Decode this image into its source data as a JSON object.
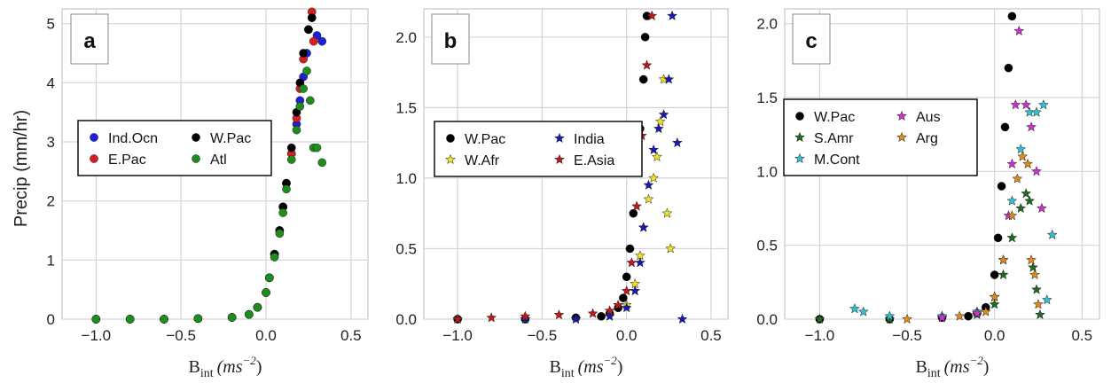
{
  "figure": {
    "ylabel": "Precip (mm/hr)",
    "xlabel_main": "B",
    "xlabel_sub": "int",
    "xlabel_units": "(ms",
    "xlabel_exp": "−2",
    "xlabel_close": ")"
  },
  "chart_data": [
    {
      "type": "scatter",
      "panel": "a",
      "xlim": [
        -1.2,
        0.6
      ],
      "ylim": [
        0,
        5.25
      ],
      "xticks": [
        -1.0,
        -0.5,
        0.0,
        0.5
      ],
      "yticks": [
        0,
        1,
        2,
        3,
        4,
        5
      ],
      "xtick_labels": [
        "−1.0",
        "−0.5",
        "0.0",
        "0.5"
      ],
      "ytick_labels": [
        "0",
        "1",
        "2",
        "3",
        "4",
        "5"
      ],
      "grid": true,
      "legend": {
        "placement": "center-left",
        "columns": 2
      },
      "series": [
        {
          "name": "Ind.Ocn",
          "marker": "circle",
          "color": "#1f1fd6",
          "x": [
            -1.0,
            -0.8,
            -0.6,
            -0.4,
            -0.2,
            -0.1,
            -0.05,
            0.0,
            0.02,
            0.05,
            0.08,
            0.1,
            0.12,
            0.15,
            0.18,
            0.2,
            0.22,
            0.24,
            0.25,
            0.27,
            0.3,
            0.33
          ],
          "y": [
            0.0,
            0.0,
            0.0,
            0.01,
            0.03,
            0.08,
            0.2,
            0.45,
            0.7,
            1.1,
            1.5,
            1.9,
            2.3,
            2.8,
            3.3,
            3.7,
            4.1,
            4.5,
            4.9,
            5.1,
            4.8,
            4.7
          ]
        },
        {
          "name": "E.Pac",
          "marker": "circle",
          "color": "#d42020",
          "x": [
            -1.0,
            -0.8,
            -0.6,
            -0.4,
            -0.2,
            -0.1,
            -0.05,
            0.0,
            0.02,
            0.05,
            0.08,
            0.1,
            0.12,
            0.15,
            0.18,
            0.2,
            0.22,
            0.25,
            0.27,
            0.28
          ],
          "y": [
            0.0,
            0.0,
            0.0,
            0.01,
            0.03,
            0.08,
            0.2,
            0.45,
            0.7,
            1.1,
            1.5,
            1.9,
            2.3,
            2.8,
            3.4,
            3.9,
            4.4,
            4.9,
            5.2,
            4.7
          ]
        },
        {
          "name": "W.Pac",
          "marker": "circle",
          "color": "#000000",
          "x": [
            -1.0,
            -0.8,
            -0.6,
            -0.4,
            -0.2,
            -0.1,
            -0.05,
            0.0,
            0.02,
            0.05,
            0.08,
            0.1,
            0.12,
            0.15,
            0.18,
            0.2,
            0.22,
            0.25,
            0.27
          ],
          "y": [
            0.0,
            0.0,
            0.0,
            0.01,
            0.03,
            0.08,
            0.2,
            0.45,
            0.7,
            1.1,
            1.5,
            1.9,
            2.3,
            2.9,
            3.5,
            4.0,
            4.5,
            4.9,
            5.1
          ]
        },
        {
          "name": "Atl",
          "marker": "circle",
          "color": "#1e8c1e",
          "x": [
            -1.0,
            -0.8,
            -0.6,
            -0.4,
            -0.2,
            -0.1,
            -0.05,
            0.0,
            0.02,
            0.05,
            0.08,
            0.1,
            0.12,
            0.15,
            0.18,
            0.2,
            0.22,
            0.24,
            0.26,
            0.28,
            0.3,
            0.33
          ],
          "y": [
            0.0,
            0.0,
            0.0,
            0.01,
            0.03,
            0.08,
            0.2,
            0.45,
            0.7,
            1.05,
            1.45,
            1.8,
            2.2,
            2.7,
            3.2,
            3.6,
            3.9,
            4.2,
            3.7,
            2.9,
            2.9,
            2.65
          ]
        }
      ]
    },
    {
      "type": "scatter",
      "panel": "b",
      "xlim": [
        -1.2,
        0.6
      ],
      "ylim": [
        0,
        2.2
      ],
      "xticks": [
        -1.0,
        -0.5,
        0.0,
        0.5
      ],
      "yticks": [
        0.0,
        0.5,
        1.0,
        1.5,
        2.0
      ],
      "xtick_labels": [
        "−1.0",
        "−0.5",
        "0.0",
        "0.5"
      ],
      "ytick_labels": [
        "0.0",
        "0.5",
        "1.0",
        "1.5",
        "2.0"
      ],
      "grid": true,
      "legend": {
        "placement": "center-left",
        "columns": 2
      },
      "series": [
        {
          "name": "W.Pac",
          "marker": "circle",
          "color": "#000000",
          "x": [
            -1.0,
            -0.6,
            -0.3,
            -0.15,
            -0.1,
            -0.05,
            -0.02,
            0.0,
            0.02,
            0.04,
            0.06,
            0.08,
            0.1,
            0.11,
            0.12
          ],
          "y": [
            0.0,
            0.0,
            0.01,
            0.02,
            0.04,
            0.08,
            0.15,
            0.3,
            0.5,
            0.75,
            1.05,
            1.35,
            1.7,
            2.0,
            2.15
          ]
        },
        {
          "name": "W.Afr",
          "marker": "star",
          "color": "#f0e020",
          "x": [
            -1.0,
            -0.6,
            -0.3,
            -0.1,
            0.0,
            0.05,
            0.08,
            0.1,
            0.13,
            0.16,
            0.18,
            0.2,
            0.22,
            0.24,
            0.26
          ],
          "y": [
            0.0,
            0.0,
            0.0,
            0.02,
            0.1,
            0.25,
            0.45,
            0.65,
            0.85,
            1.0,
            1.15,
            1.4,
            1.7,
            0.75,
            0.5
          ]
        },
        {
          "name": "India",
          "marker": "star",
          "color": "#1a1ab0",
          "x": [
            -1.0,
            -0.6,
            -0.3,
            -0.1,
            0.0,
            0.05,
            0.08,
            0.1,
            0.13,
            0.16,
            0.19,
            0.22,
            0.25,
            0.27,
            0.3,
            0.33
          ],
          "y": [
            0.0,
            0.0,
            0.0,
            0.02,
            0.08,
            0.2,
            0.4,
            0.65,
            0.95,
            1.2,
            1.35,
            1.45,
            1.7,
            2.15,
            1.25,
            0.0
          ]
        },
        {
          "name": "E.Asia",
          "marker": "star",
          "color": "#c01818",
          "x": [
            -1.0,
            -0.8,
            -0.6,
            -0.4,
            -0.2,
            -0.1,
            -0.05,
            0.0,
            0.03,
            0.06,
            0.09,
            0.12,
            0.15
          ],
          "y": [
            0.0,
            0.01,
            0.02,
            0.03,
            0.04,
            0.06,
            0.1,
            0.2,
            0.4,
            0.8,
            1.3,
            1.8,
            2.15
          ]
        }
      ]
    },
    {
      "type": "scatter",
      "panel": "c",
      "xlim": [
        -1.2,
        0.6
      ],
      "ylim": [
        0,
        2.1
      ],
      "xticks": [
        -1.0,
        -0.5,
        0.0,
        0.5
      ],
      "yticks": [
        0.0,
        0.5,
        1.0,
        1.5,
        2.0
      ],
      "xtick_labels": [
        "−1.0",
        "−0.5",
        "0.0",
        "0.5"
      ],
      "ytick_labels": [
        "0.0",
        "0.5",
        "1.0",
        "1.5",
        "2.0"
      ],
      "grid": true,
      "legend": {
        "placement": "center-left",
        "columns": 2
      },
      "series": [
        {
          "name": "W.Pac",
          "marker": "circle",
          "color": "#000000",
          "x": [
            -1.0,
            -0.6,
            -0.3,
            -0.15,
            -0.1,
            -0.05,
            0.0,
            0.02,
            0.04,
            0.06,
            0.08,
            0.1
          ],
          "y": [
            0.0,
            0.0,
            0.01,
            0.02,
            0.04,
            0.08,
            0.3,
            0.55,
            0.9,
            1.3,
            1.7,
            2.05
          ]
        },
        {
          "name": "S.Amr",
          "marker": "star",
          "color": "#1f6b1f",
          "x": [
            -1.0,
            -0.6,
            -0.3,
            -0.1,
            0.0,
            0.05,
            0.1,
            0.15,
            0.18,
            0.2,
            0.22,
            0.24,
            0.26
          ],
          "y": [
            0.0,
            0.0,
            0.01,
            0.03,
            0.1,
            0.3,
            0.55,
            0.75,
            0.85,
            0.8,
            0.35,
            0.2,
            0.03
          ]
        },
        {
          "name": "M.Cont",
          "marker": "star",
          "color": "#30c0d0",
          "x": [
            -0.8,
            -0.75,
            -0.6,
            -0.3,
            -0.1,
            0.0,
            0.05,
            0.1,
            0.15,
            0.2,
            0.24,
            0.28,
            0.3,
            0.33
          ],
          "y": [
            0.07,
            0.05,
            0.02,
            0.02,
            0.05,
            0.15,
            0.4,
            0.8,
            1.15,
            1.4,
            1.4,
            1.45,
            0.13,
            0.57
          ]
        },
        {
          "name": "Aus",
          "marker": "star",
          "color": "#d030d0",
          "x": [
            -0.3,
            -0.1,
            0.0,
            0.05,
            0.08,
            0.1,
            0.12,
            0.14,
            0.18,
            0.21,
            0.24,
            0.27
          ],
          "y": [
            0.01,
            0.04,
            0.15,
            0.4,
            0.7,
            1.05,
            1.45,
            1.95,
            1.45,
            1.3,
            1.0,
            0.75
          ]
        },
        {
          "name": "Arg",
          "marker": "star",
          "color": "#e08a1a",
          "x": [
            -0.5,
            -0.2,
            -0.05,
            0.0,
            0.05,
            0.1,
            0.13,
            0.16,
            0.19,
            0.21,
            0.23,
            0.25
          ],
          "y": [
            0.0,
            0.02,
            0.05,
            0.15,
            0.4,
            0.7,
            0.95,
            1.1,
            1.05,
            0.4,
            0.3,
            0.1
          ]
        }
      ]
    }
  ]
}
